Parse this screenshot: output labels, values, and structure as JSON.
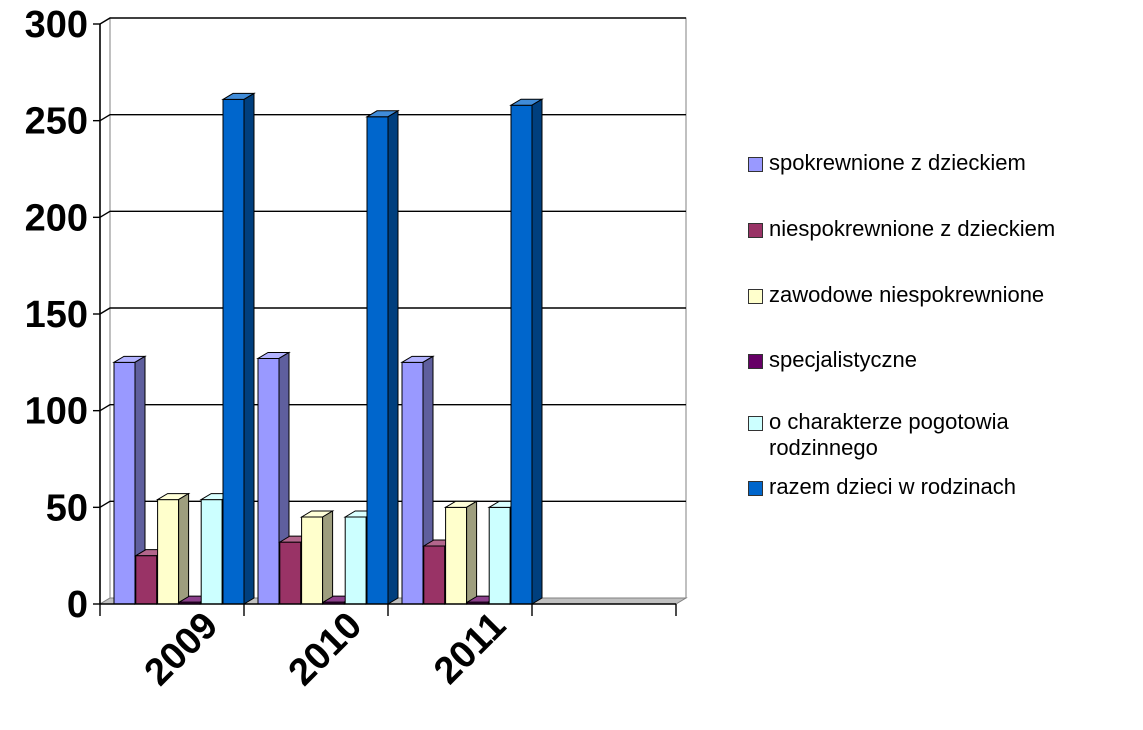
{
  "chart_data": {
    "type": "bar",
    "categories": [
      "2009",
      "2010",
      "2011"
    ],
    "ylim": [
      0,
      300
    ],
    "yticks": [
      0,
      50,
      100,
      150,
      200,
      250,
      300
    ],
    "grid": true,
    "legend_position": "right",
    "series": [
      {
        "name": "spokrewnione z dzieckiem",
        "color": "#9999ff",
        "values": [
          125,
          127,
          125
        ]
      },
      {
        "name": "niespokrewnione z dzieckiem",
        "color": "#993366",
        "values": [
          25,
          32,
          30
        ]
      },
      {
        "name": "zawodowe niespokrewnione",
        "color": "#ffffcc",
        "values": [
          54,
          45,
          50
        ]
      },
      {
        "name": "specjalistyczne",
        "color": "#660066",
        "values": [
          1,
          1,
          1
        ]
      },
      {
        "name": "o charakterze pogotowia rodzinnego",
        "color": "#ccffff",
        "values": [
          54,
          45,
          50
        ]
      },
      {
        "name": "razem dzieci w rodzinach",
        "color": "#0066cc",
        "values": [
          261,
          252,
          258
        ]
      }
    ]
  }
}
